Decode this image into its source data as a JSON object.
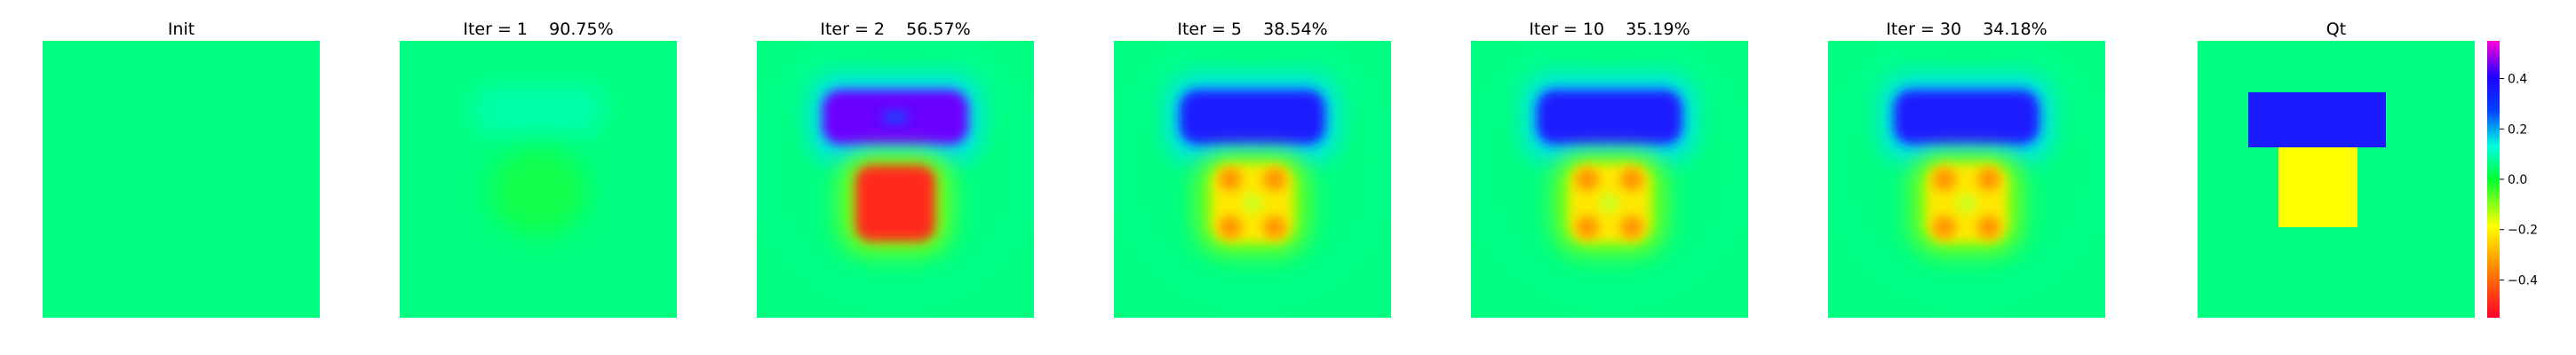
{
  "chart_data": [
    {
      "type": "heatmap",
      "title": "Init",
      "colormap": "gist_rainbow_r",
      "vmin": -0.55,
      "vmax": 0.55,
      "axes": "off",
      "field": "uniform"
    },
    {
      "type": "heatmap",
      "title": "Iter = 1    90.75%",
      "colormap": "gist_rainbow_r",
      "vmin": -0.55,
      "vmax": 0.55,
      "axes": "off",
      "field": "reconstruction",
      "iteration": 1,
      "error_percent": 90.75
    },
    {
      "type": "heatmap",
      "title": "Iter = 2    56.57%",
      "colormap": "gist_rainbow_r",
      "vmin": -0.55,
      "vmax": 0.55,
      "axes": "off",
      "field": "reconstruction",
      "iteration": 2,
      "error_percent": 56.57
    },
    {
      "type": "heatmap",
      "title": "Iter = 5    38.54%",
      "colormap": "gist_rainbow_r",
      "vmin": -0.55,
      "vmax": 0.55,
      "axes": "off",
      "field": "reconstruction",
      "iteration": 5,
      "error_percent": 38.54
    },
    {
      "type": "heatmap",
      "title": "Iter = 10    35.19%",
      "colormap": "gist_rainbow_r",
      "vmin": -0.55,
      "vmax": 0.55,
      "axes": "off",
      "field": "reconstruction",
      "iteration": 10,
      "error_percent": 35.19
    },
    {
      "type": "heatmap",
      "title": "Iter = 30    34.18%",
      "colormap": "gist_rainbow_r",
      "vmin": -0.55,
      "vmax": 0.55,
      "axes": "off",
      "field": "reconstruction",
      "iteration": 30,
      "error_percent": 34.18
    },
    {
      "type": "heatmap",
      "title": "Qt",
      "colormap": "gist_rainbow_r",
      "vmin": -0.55,
      "vmax": 0.55,
      "axes": "off",
      "field": "ground-truth",
      "regions": [
        {
          "shape": "rectangle",
          "value": 0.28
        },
        {
          "shape": "rectangle",
          "value": -0.32
        }
      ],
      "background_value": 0.0
    }
  ],
  "colorbar": {
    "ticks": [
      0.4,
      0.2,
      0.0,
      -0.2,
      -0.4
    ],
    "tick_labels": [
      "0.4",
      "0.2",
      "0.0",
      "−0.2",
      "−0.4"
    ],
    "range": [
      -0.55,
      0.55
    ]
  },
  "colors": {
    "background": "#00ff80",
    "negative_peak": "#ff2a1a",
    "positive_peak": "#1a1aff",
    "mid_negative": "#ffff00"
  }
}
